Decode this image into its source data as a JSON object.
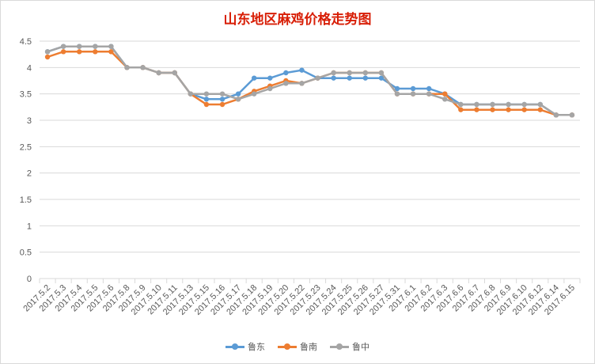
{
  "chart_data": {
    "type": "line",
    "title": "山东地区麻鸡价格走势图",
    "xlabel": "",
    "ylabel": "",
    "ylim": [
      0,
      4.5
    ],
    "yticks": [
      "0",
      "0.5",
      "1",
      "1.5",
      "2",
      "2.5",
      "3",
      "3.5",
      "4",
      "4.5"
    ],
    "grid": true,
    "legend_position": "bottom",
    "categories": [
      "2017.5.2",
      "2017.5.3",
      "2017.5.4",
      "2017.5.5",
      "2017.5.6",
      "2017.5.8",
      "2017.5.9",
      "2017.5.10",
      "2017.5.11",
      "2017.5.13",
      "2017.5.15",
      "2017.5.16",
      "2017.5.17",
      "2017.5.18",
      "2017.5.19",
      "2017.5.20",
      "2017.5.22",
      "2017.5.23",
      "2017.5.24",
      "2017.5.25",
      "2017.5.26",
      "2017.5.27",
      "2017.5.31",
      "2017.6.1",
      "2017.6.2",
      "2017.6.3",
      "2017.6.6",
      "2017.6.7",
      "2017.6.8",
      "2017.6.9",
      "2017.6.10",
      "2017.6.12",
      "2017.6.14",
      "2017.6.15"
    ],
    "series": [
      {
        "name": "鲁东",
        "color": "#5b9bd5",
        "values": [
          4.3,
          4.4,
          4.4,
          4.4,
          4.4,
          4.0,
          4.0,
          3.9,
          3.9,
          3.5,
          3.4,
          3.4,
          3.5,
          3.8,
          3.8,
          3.9,
          3.95,
          3.8,
          3.8,
          3.8,
          3.8,
          3.8,
          3.6,
          3.6,
          3.6,
          3.5,
          3.3,
          3.3,
          3.3,
          3.3,
          3.3,
          3.3,
          3.1,
          3.1
        ]
      },
      {
        "name": "鲁南",
        "color": "#ed7d31",
        "values": [
          4.2,
          4.3,
          4.3,
          4.3,
          4.3,
          4.0,
          4.0,
          3.9,
          3.9,
          3.5,
          3.3,
          3.3,
          3.4,
          3.55,
          3.65,
          3.75,
          3.7,
          3.8,
          3.9,
          3.9,
          3.9,
          3.9,
          3.5,
          3.5,
          3.5,
          3.5,
          3.2,
          3.2,
          3.2,
          3.2,
          3.2,
          3.2,
          3.1,
          3.1
        ]
      },
      {
        "name": "鲁中",
        "color": "#a5a5a5",
        "values": [
          4.3,
          4.4,
          4.4,
          4.4,
          4.4,
          4.0,
          4.0,
          3.9,
          3.9,
          3.5,
          3.5,
          3.5,
          3.4,
          3.5,
          3.6,
          3.7,
          3.7,
          3.8,
          3.9,
          3.9,
          3.9,
          3.9,
          3.5,
          3.5,
          3.5,
          3.4,
          3.3,
          3.3,
          3.3,
          3.3,
          3.3,
          3.3,
          3.1,
          3.1
        ]
      }
    ]
  }
}
